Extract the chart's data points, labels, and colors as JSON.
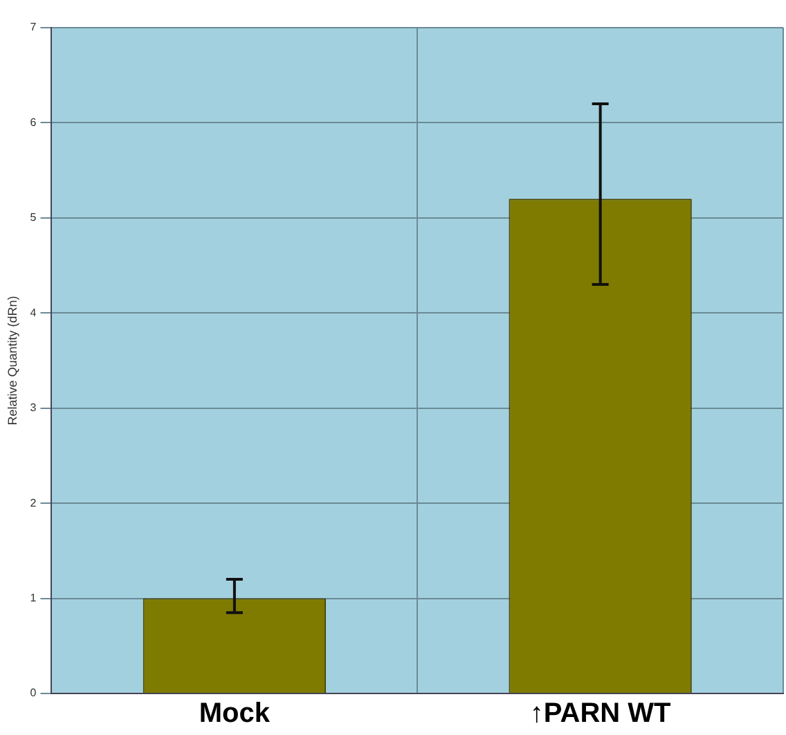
{
  "chart_data": {
    "type": "bar",
    "ylabel": "Relative Quantity (dRn)",
    "categories": [
      "Mock",
      "↑PARN WT"
    ],
    "values": [
      1.0,
      5.2
    ],
    "errors": [
      [
        0.85,
        1.2
      ],
      [
        4.3,
        6.2
      ]
    ],
    "color": "#7f7a00",
    "ylim": [
      0,
      7
    ],
    "yticks": [
      0,
      1,
      2,
      3,
      4,
      5,
      6,
      7
    ],
    "grid": true,
    "legend": false
  }
}
